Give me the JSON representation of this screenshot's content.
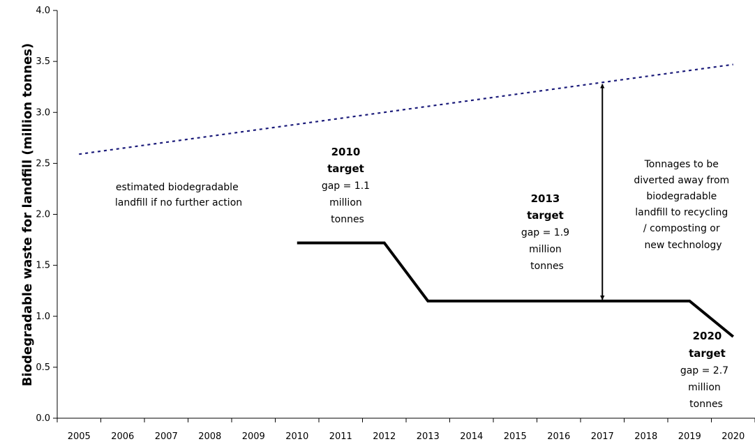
{
  "chart_data": {
    "type": "line",
    "title": "",
    "xlabel": "",
    "ylabel": "Biodegradable waste for landfill (million tonnes)",
    "ylim": [
      0,
      4.0
    ],
    "yticks": [
      "0.0",
      "0.5",
      "1.0",
      "1.5",
      "2.0",
      "2.5",
      "3.0",
      "3.5",
      "4.0"
    ],
    "categories": [
      "2005",
      "2006",
      "2007",
      "2008",
      "2009",
      "2010",
      "2011",
      "2012",
      "2013",
      "2014",
      "2015",
      "2016",
      "2017",
      "2018",
      "2019",
      "2020"
    ],
    "grid": false,
    "legend": "none",
    "series": [
      {
        "style": "dotted",
        "color": "#1b1b7a",
        "points": [
          [
            2005,
            2.59
          ],
          [
            2020,
            3.47
          ]
        ]
      },
      {
        "style": "solid",
        "color": "#000000",
        "points": [
          [
            2010,
            1.72
          ],
          [
            2012,
            1.72
          ],
          [
            2013,
            1.15
          ],
          [
            2019,
            1.15
          ],
          [
            2020,
            0.8
          ]
        ]
      }
    ],
    "annotations": {
      "no_action": [
        "estimated biodegradable",
        "landfill if no further action"
      ],
      "target_2010": {
        "title": [
          "2010",
          "target"
        ],
        "text": [
          "gap = 1.1",
          "million",
          "tonnes"
        ]
      },
      "target_2013": {
        "title": [
          "2013",
          "target"
        ],
        "text": [
          "gap = 1.9",
          "million",
          "tonnes"
        ]
      },
      "target_2020": {
        "title": [
          "2020",
          "target"
        ],
        "text": [
          "gap = 2.7",
          "million",
          "tonnes"
        ]
      },
      "diverted": [
        "Tonnages to be",
        "diverted away from",
        "biodegradable",
        "landfill to recycling",
        "/ composting or",
        "new technology"
      ],
      "gap_arrow": {
        "x": 2017,
        "y_from": 1.15,
        "y_to": 3.29
      }
    }
  }
}
